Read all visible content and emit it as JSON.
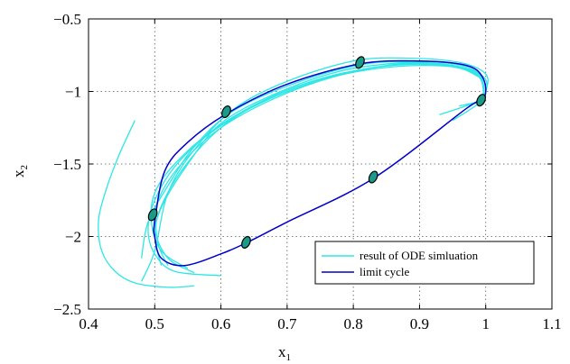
{
  "chart_data": {
    "type": "line",
    "title": "",
    "xlabel": {
      "base": "x",
      "sub": "1"
    },
    "ylabel": {
      "base": "x",
      "sub": "2"
    },
    "xlim": [
      0.4,
      1.1
    ],
    "ylim": [
      -2.5,
      -0.5
    ],
    "xticks": [
      0.4,
      0.5,
      0.6,
      0.7,
      0.8,
      0.9,
      1.0,
      1.1
    ],
    "xtick_labels": [
      "0.4",
      "0.5",
      "0.6",
      "0.7",
      "0.8",
      "0.9",
      "1",
      "1.1"
    ],
    "yticks": [
      -2.5,
      -2.0,
      -1.5,
      -1.0,
      -0.5
    ],
    "ytick_labels": [
      "−2.5",
      "−2",
      "−1.5",
      "−1",
      "−0.5"
    ],
    "grid": true,
    "legend_position": "bottom-right",
    "colors": {
      "ode": "#2ee6e6",
      "limit": "#0000cc",
      "marker_fill": "#1a9a8a"
    },
    "series": [
      {
        "name": "result of ODE simluation",
        "kind": "trajectories",
        "curves": [
          [
            [
              0.47,
              -1.2
            ],
            [
              0.445,
              -1.45
            ],
            [
              0.425,
              -1.7
            ],
            [
              0.415,
              -1.9
            ],
            [
              0.42,
              -2.1
            ],
            [
              0.44,
              -2.24
            ],
            [
              0.47,
              -2.32
            ],
            [
              0.52,
              -2.35
            ],
            [
              0.56,
              -2.34
            ]
          ],
          [
            [
              0.48,
              -2.31
            ],
            [
              0.5,
              -2.1
            ],
            [
              0.52,
              -1.7
            ],
            [
              0.56,
              -1.4
            ],
            [
              0.62,
              -1.12
            ],
            [
              0.7,
              -0.93
            ],
            [
              0.8,
              -0.79
            ],
            [
              0.88,
              -0.77
            ],
            [
              0.96,
              -0.8
            ],
            [
              1.0,
              -0.88
            ],
            [
              1.0,
              -1.0
            ],
            [
              0.99,
              -1.08
            ],
            [
              0.95,
              -1.2
            ]
          ],
          [
            [
              0.48,
              -2.15
            ],
            [
              0.49,
              -1.9
            ],
            [
              0.52,
              -1.65
            ],
            [
              0.56,
              -1.38
            ],
            [
              0.62,
              -1.13
            ],
            [
              0.72,
              -0.93
            ],
            [
              0.82,
              -0.81
            ],
            [
              0.9,
              -0.8
            ],
            [
              0.97,
              -0.84
            ],
            [
              1.0,
              -0.92
            ],
            [
              0.995,
              -1.05
            ],
            [
              0.97,
              -1.1
            ],
            [
              0.93,
              -1.16
            ]
          ],
          [
            [
              0.51,
              -2.2
            ],
            [
              0.5,
              -2.0
            ],
            [
              0.51,
              -1.8
            ],
            [
              0.55,
              -1.5
            ],
            [
              0.6,
              -1.22
            ],
            [
              0.68,
              -1.02
            ],
            [
              0.78,
              -0.86
            ],
            [
              0.88,
              -0.8
            ],
            [
              0.95,
              -0.81
            ],
            [
              0.99,
              -0.88
            ],
            [
              0.996,
              -1.05
            ],
            [
              0.97,
              -1.09
            ]
          ],
          [
            [
              0.52,
              -2.2
            ],
            [
              0.505,
              -2.05
            ],
            [
              0.505,
              -1.85
            ],
            [
              0.54,
              -1.55
            ],
            [
              0.6,
              -1.25
            ],
            [
              0.68,
              -1.03
            ],
            [
              0.78,
              -0.88
            ],
            [
              0.88,
              -0.81
            ],
            [
              0.95,
              -0.83
            ],
            [
              0.99,
              -0.9
            ],
            [
              0.994,
              -1.05
            ],
            [
              0.96,
              -1.1
            ]
          ],
          [
            [
              0.55,
              -2.22
            ],
            [
              0.51,
              -2.1
            ],
            [
              0.495,
              -1.9
            ],
            [
              0.5,
              -1.7
            ],
            [
              0.53,
              -1.5
            ],
            [
              0.59,
              -1.26
            ],
            [
              0.67,
              -1.05
            ],
            [
              0.76,
              -0.9
            ],
            [
              0.86,
              -0.82
            ],
            [
              0.94,
              -0.82
            ],
            [
              0.985,
              -0.87
            ],
            [
              0.997,
              -1.0
            ],
            [
              0.99,
              -1.07
            ]
          ],
          [
            [
              0.56,
              -2.25
            ],
            [
              0.52,
              -2.15
            ],
            [
              0.5,
              -1.95
            ],
            [
              0.505,
              -1.75
            ],
            [
              0.54,
              -1.5
            ],
            [
              0.6,
              -1.25
            ],
            [
              0.68,
              -1.05
            ],
            [
              0.77,
              -0.9
            ],
            [
              0.87,
              -0.81
            ],
            [
              0.95,
              -0.82
            ],
            [
              0.99,
              -0.9
            ],
            [
              0.997,
              -1.04
            ]
          ],
          [
            [
              0.6,
              -2.27
            ],
            [
              0.53,
              -2.24
            ],
            [
              0.5,
              -2.12
            ],
            [
              0.49,
              -1.95
            ],
            [
              0.5,
              -1.75
            ],
            [
              0.53,
              -1.52
            ],
            [
              0.58,
              -1.3
            ],
            [
              0.66,
              -1.08
            ],
            [
              0.76,
              -0.91
            ],
            [
              0.86,
              -0.83
            ],
            [
              0.95,
              -0.83
            ],
            [
              0.99,
              -0.9
            ]
          ]
        ]
      },
      {
        "name": "limit cycle",
        "kind": "closed",
        "points": [
          [
            0.5,
            -1.9
          ],
          [
            0.515,
            -1.55
          ],
          [
            0.55,
            -1.35
          ],
          [
            0.61,
            -1.15
          ],
          [
            0.7,
            -0.95
          ],
          [
            0.81,
            -0.81
          ],
          [
            0.9,
            -0.79
          ],
          [
            0.97,
            -0.82
          ],
          [
            0.995,
            -0.9
          ],
          [
            0.998,
            -1.04
          ],
          [
            0.97,
            -1.12
          ],
          [
            0.83,
            -1.6
          ],
          [
            0.7,
            -1.9
          ],
          [
            0.64,
            -2.04
          ],
          [
            0.6,
            -2.12
          ],
          [
            0.545,
            -2.2
          ],
          [
            0.51,
            -2.15
          ],
          [
            0.5,
            -2.0
          ]
        ]
      }
    ],
    "markers": [
      [
        0.81,
        -0.8
      ],
      [
        0.608,
        -1.14
      ],
      [
        0.993,
        -1.06
      ],
      [
        0.83,
        -1.59
      ],
      [
        0.497,
        -1.85
      ],
      [
        0.638,
        -2.04
      ]
    ]
  }
}
